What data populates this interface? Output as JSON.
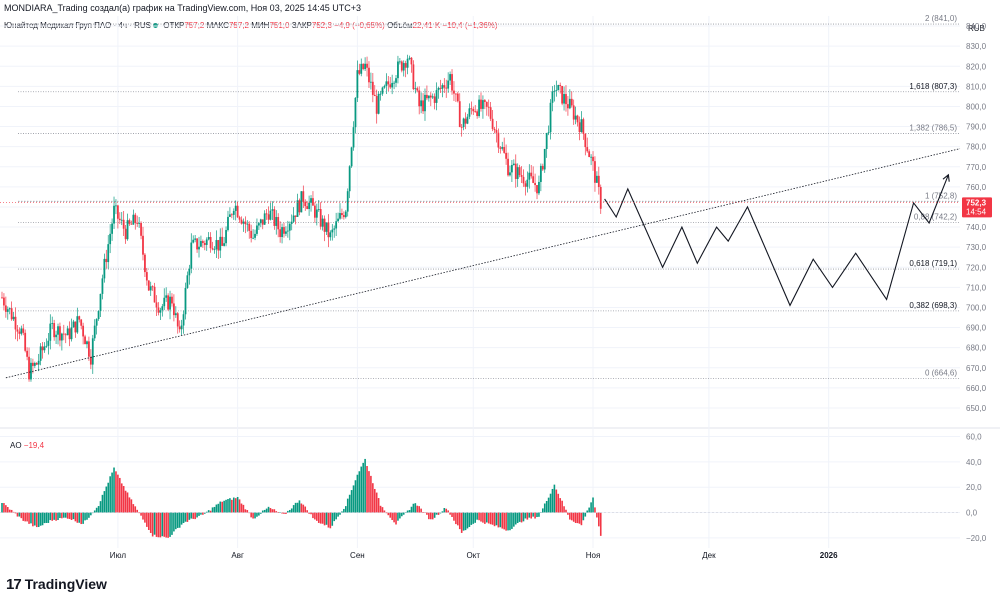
{
  "header": {
    "attribution": "MONDIARA_Trading создал(а) график на TradingView.com, Ноя 03, 2025 14:45 UTC+3",
    "symbol": "Юнайтед Медикал Груп ПАО · 4ч · RUS",
    "open_label": "ОТКР",
    "open_value": "757,2",
    "high_label": "МАКС",
    "high_value": "757,2",
    "low_label": "МИН",
    "low_value": "751,0",
    "close_label": "ЗАКР",
    "close_value": "752,3",
    "change": "−4,9 (−0,65%)",
    "volume_label": "Объём",
    "volume_value": "22,41 K",
    "volume_change": "−10,4 (−1,36%)"
  },
  "currency": "RUB",
  "price_tag": {
    "value": "752,3",
    "timer": "14:54"
  },
  "ao": {
    "label": "AO",
    "value": "−19,4"
  },
  "brand": {
    "name": "TradingView",
    "logo_text": "17"
  },
  "colors": {
    "up": "#089981",
    "down": "#f23645",
    "grid": "#f0f3fa",
    "text": "#131722",
    "axis_text": "#787b86"
  },
  "chart_data": [
    {
      "type": "candlestick",
      "title": "Юнайтед Медикал Груп ПАО · 4ч · RUS",
      "ylim": [
        645,
        845
      ],
      "y_ticks": [
        "650,0",
        "660,0",
        "670,0",
        "680,0",
        "690,0",
        "700,0",
        "710,0",
        "720,0",
        "730,0",
        "740,0",
        "750,0",
        "760,0",
        "770,0",
        "780,0",
        "790,0",
        "800,0",
        "810,0",
        "820,0",
        "830,0",
        "840,0"
      ],
      "y_tick_values": [
        650,
        660,
        670,
        680,
        690,
        700,
        710,
        720,
        730,
        740,
        750,
        760,
        770,
        780,
        790,
        800,
        810,
        820,
        830,
        840
      ],
      "x_ticks": [
        "Июл",
        "Авг",
        "Сен",
        "Окт",
        "Ноя",
        "Дек",
        "2026"
      ],
      "x_tick_dates": [
        "2025-07-01",
        "2025-08-01",
        "2025-09-01",
        "2025-10-01",
        "2025-11-01",
        "2025-12-01",
        "2026-01-01"
      ],
      "x_range": [
        "2025-06-01",
        "2026-02-04"
      ],
      "price_path": [
        [
          "2025-06-01",
          705
        ],
        [
          "2025-06-06",
          688
        ],
        [
          "2025-06-08",
          668
        ],
        [
          "2025-06-10",
          672
        ],
        [
          "2025-06-14",
          690
        ],
        [
          "2025-06-18",
          686
        ],
        [
          "2025-06-21",
          694
        ],
        [
          "2025-06-24",
          676
        ],
        [
          "2025-06-27",
          715
        ],
        [
          "2025-06-30",
          748
        ],
        [
          "2025-07-03",
          738
        ],
        [
          "2025-07-06",
          744
        ],
        [
          "2025-07-09",
          710
        ],
        [
          "2025-07-12",
          700
        ],
        [
          "2025-07-15",
          704
        ],
        [
          "2025-07-17",
          685
        ],
        [
          "2025-07-20",
          730
        ],
        [
          "2025-07-25",
          734
        ],
        [
          "2025-07-28",
          730
        ],
        [
          "2025-07-31",
          752
        ],
        [
          "2025-08-05",
          735
        ],
        [
          "2025-08-09",
          748
        ],
        [
          "2025-08-12",
          738
        ],
        [
          "2025-08-15",
          745
        ],
        [
          "2025-08-18",
          755
        ],
        [
          "2025-08-21",
          748
        ],
        [
          "2025-08-25",
          735
        ],
        [
          "2025-08-29",
          750
        ],
        [
          "2025-09-01",
          815
        ],
        [
          "2025-09-03",
          820
        ],
        [
          "2025-09-06",
          800
        ],
        [
          "2025-09-10",
          815
        ],
        [
          "2025-09-14",
          825
        ],
        [
          "2025-09-17",
          800
        ],
        [
          "2025-09-21",
          805
        ],
        [
          "2025-09-25",
          815
        ],
        [
          "2025-09-28",
          790
        ],
        [
          "2025-10-01",
          800
        ],
        [
          "2025-10-05",
          798
        ],
        [
          "2025-10-10",
          770
        ],
        [
          "2025-10-14",
          765
        ],
        [
          "2025-10-18",
          760
        ],
        [
          "2025-10-22",
          810
        ],
        [
          "2025-10-26",
          800
        ],
        [
          "2025-10-29",
          790
        ],
        [
          "2025-11-01",
          770
        ],
        [
          "2025-11-03",
          752.3
        ]
      ],
      "projection": [
        [
          "2025-11-04",
          754
        ],
        [
          "2025-11-07",
          745
        ],
        [
          "2025-11-10",
          759
        ],
        [
          "2025-11-19",
          720
        ],
        [
          "2025-11-24",
          740
        ],
        [
          "2025-11-28",
          722
        ],
        [
          "2025-12-03",
          740
        ],
        [
          "2025-12-06",
          733
        ],
        [
          "2025-12-11",
          750
        ],
        [
          "2025-12-22",
          701
        ],
        [
          "2025-12-28",
          724
        ],
        [
          "2026-01-02",
          710
        ],
        [
          "2026-01-08",
          727
        ],
        [
          "2026-01-16",
          704
        ],
        [
          "2026-01-23",
          752
        ],
        [
          "2026-01-27",
          742
        ],
        [
          "2026-02-01",
          766
        ]
      ],
      "trendline": [
        [
          "2025-06-02",
          665
        ],
        [
          "2026-02-04",
          779
        ]
      ],
      "fibonacci": [
        {
          "level": "2",
          "price": 841.0,
          "label": "2 (841,0)"
        },
        {
          "level": "1,618",
          "price": 807.3,
          "label": "1,618 (807,3)"
        },
        {
          "level": "1,382",
          "price": 786.5,
          "label": "1,382 (786,5)"
        },
        {
          "level": "1",
          "price": 752.8,
          "label": "1 (752,8)"
        },
        {
          "level": "0,88",
          "price": 742.2,
          "label": "0,88 (742,2)"
        },
        {
          "level": "0,618",
          "price": 719.1,
          "label": "0,618 (719,1)"
        },
        {
          "level": "0,382",
          "price": 698.3,
          "label": "0,382 (698,3)"
        },
        {
          "level": "0",
          "price": 664.6,
          "label": "0 (664,6)"
        }
      ]
    },
    {
      "type": "bar",
      "title": "AO",
      "ylim": [
        -28,
        62
      ],
      "y_ticks": [
        "−20,0",
        "0,0",
        "20,0",
        "40,0",
        "60,0"
      ],
      "y_tick_values": [
        -20,
        0,
        20,
        40,
        60
      ],
      "ao_path": [
        [
          "2025-06-01",
          8
        ],
        [
          "2025-06-06",
          -5
        ],
        [
          "2025-06-10",
          -12
        ],
        [
          "2025-06-14",
          -6
        ],
        [
          "2025-06-18",
          -4
        ],
        [
          "2025-06-22",
          -9
        ],
        [
          "2025-06-26",
          6
        ],
        [
          "2025-06-30",
          35
        ],
        [
          "2025-07-04",
          12
        ],
        [
          "2025-07-10",
          -18
        ],
        [
          "2025-07-14",
          -20
        ],
        [
          "2025-07-18",
          -8
        ],
        [
          "2025-07-23",
          -2
        ],
        [
          "2025-07-28",
          9
        ],
        [
          "2025-08-01",
          12
        ],
        [
          "2025-08-05",
          -5
        ],
        [
          "2025-08-09",
          4
        ],
        [
          "2025-08-13",
          -2
        ],
        [
          "2025-08-17",
          10
        ],
        [
          "2025-08-21",
          -6
        ],
        [
          "2025-08-25",
          -12
        ],
        [
          "2025-08-29",
          6
        ],
        [
          "2025-09-01",
          30
        ],
        [
          "2025-09-03",
          42
        ],
        [
          "2025-09-07",
          6
        ],
        [
          "2025-09-11",
          -9
        ],
        [
          "2025-09-16",
          8
        ],
        [
          "2025-09-20",
          -6
        ],
        [
          "2025-09-24",
          4
        ],
        [
          "2025-09-28",
          -16
        ],
        [
          "2025-10-02",
          -6
        ],
        [
          "2025-10-06",
          -10
        ],
        [
          "2025-10-10",
          -14
        ],
        [
          "2025-10-14",
          -6
        ],
        [
          "2025-10-18",
          -3
        ],
        [
          "2025-10-22",
          22
        ],
        [
          "2025-10-26",
          -5
        ],
        [
          "2025-10-29",
          -10
        ],
        [
          "2025-11-01",
          12
        ],
        [
          "2025-11-03",
          -19.4
        ]
      ]
    }
  ]
}
